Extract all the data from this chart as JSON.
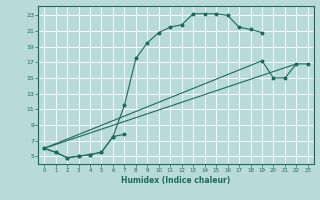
{
  "xlabel": "Humidex (Indice chaleur)",
  "ylabel": "",
  "xlim": [
    -0.5,
    23.5
  ],
  "ylim": [
    4.0,
    24.2
  ],
  "xticks": [
    0,
    1,
    2,
    3,
    4,
    5,
    6,
    7,
    8,
    9,
    10,
    11,
    12,
    13,
    14,
    15,
    16,
    17,
    18,
    19,
    20,
    21,
    22,
    23
  ],
  "yticks": [
    5,
    7,
    9,
    11,
    13,
    15,
    17,
    19,
    21,
    23
  ],
  "bg_color": "#b8dada",
  "line_color": "#1a6b5a",
  "series1_x": [
    0,
    1,
    2,
    3,
    4,
    5,
    6,
    7,
    8,
    9,
    10,
    11,
    12,
    13,
    14,
    15,
    16,
    17,
    18,
    19
  ],
  "series1_y": [
    6,
    5.5,
    4.8,
    5,
    5.2,
    5.5,
    7.5,
    11.5,
    17.5,
    19.5,
    20.8,
    21.5,
    21.8,
    23.2,
    23.2,
    23.2,
    23.0,
    21.5,
    21.2,
    20.8
  ],
  "series2_x": [
    0,
    1,
    2,
    3,
    4,
    5,
    6,
    7,
    19,
    20,
    21,
    22,
    23
  ],
  "series2_y": [
    6,
    5.5,
    4.8,
    5,
    5.2,
    5.5,
    7.5,
    7.8,
    17.2,
    15.0,
    15.0,
    16.8,
    16.8
  ],
  "line3_x": [
    0,
    22
  ],
  "line3_y": [
    6,
    16.8
  ],
  "line4_x": [
    0,
    19
  ],
  "line4_y": [
    6,
    17.2
  ]
}
